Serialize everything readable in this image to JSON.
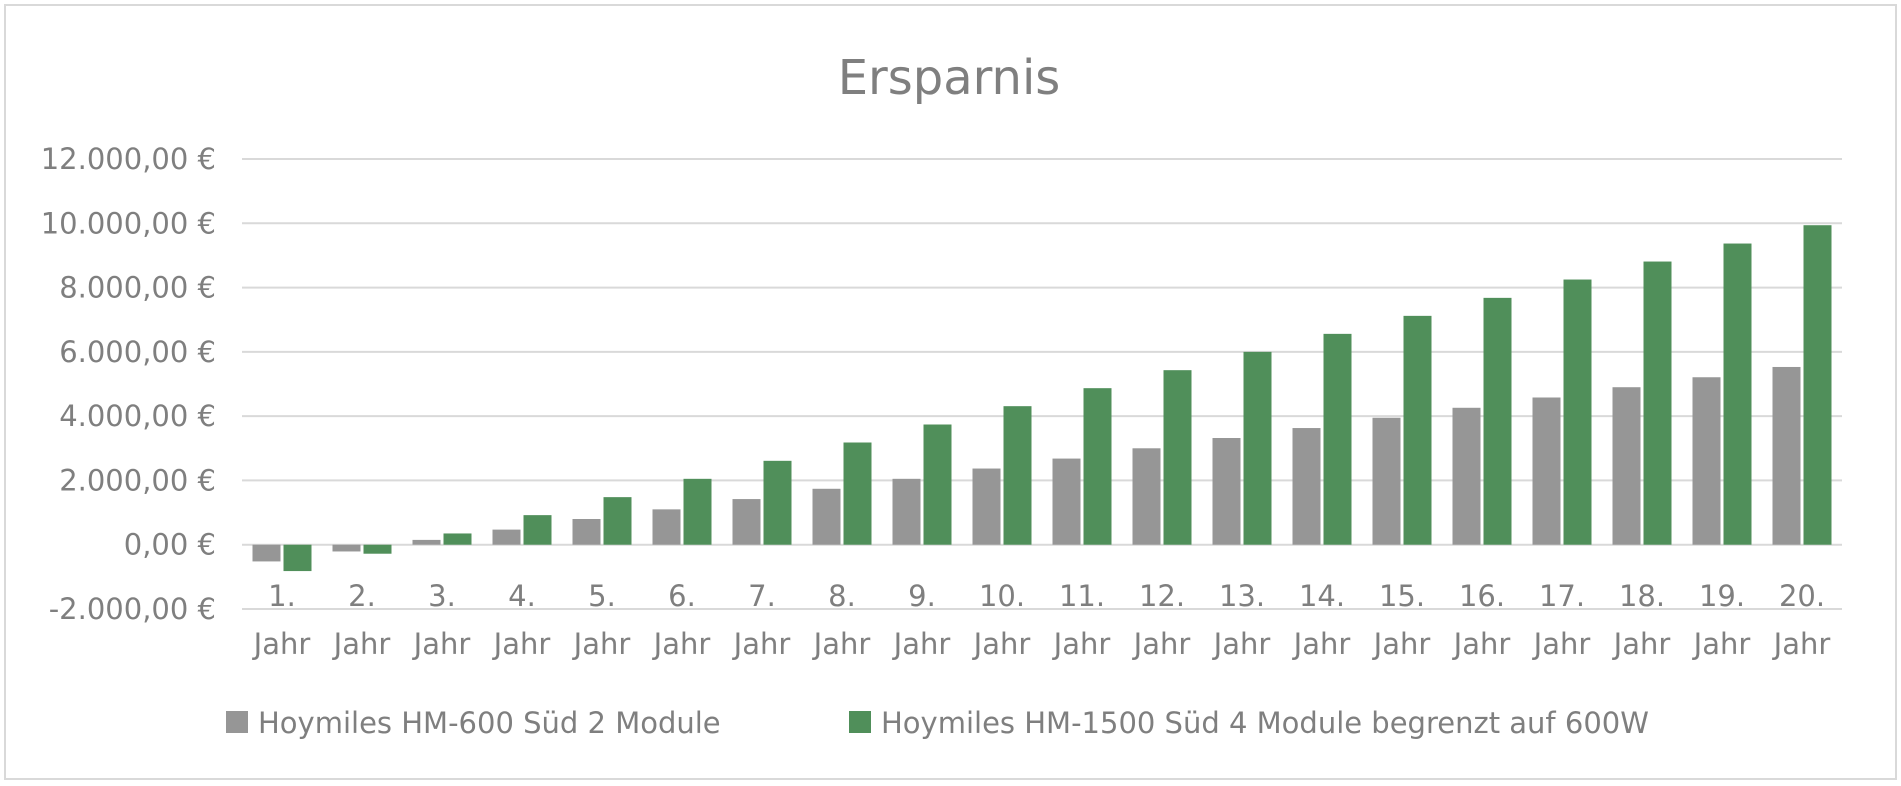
{
  "chart_data": {
    "type": "bar",
    "title": "Ersparnis",
    "xlabel": "",
    "ylabel": "",
    "ylim": [
      -2000,
      12000
    ],
    "y_ticks": [
      -2000,
      0,
      2000,
      4000,
      6000,
      8000,
      10000,
      12000
    ],
    "y_tick_labels": [
      "-2.000,00 €",
      "0,00 €",
      "2.000,00 €",
      "4.000,00 €",
      "6.000,00 €",
      "8.000,00 €",
      "10.000,00 €",
      "12.000,00 €"
    ],
    "grid": true,
    "legend_position": "bottom",
    "categories": [
      [
        "1.",
        "Jahr"
      ],
      [
        "2.",
        "Jahr"
      ],
      [
        "3.",
        "Jahr"
      ],
      [
        "4.",
        "Jahr"
      ],
      [
        "5.",
        "Jahr"
      ],
      [
        "6.",
        "Jahr"
      ],
      [
        "7.",
        "Jahr"
      ],
      [
        "8.",
        "Jahr"
      ],
      [
        "9.",
        "Jahr"
      ],
      [
        "10.",
        "Jahr"
      ],
      [
        "11.",
        "Jahr"
      ],
      [
        "12.",
        "Jahr"
      ],
      [
        "13.",
        "Jahr"
      ],
      [
        "14.",
        "Jahr"
      ],
      [
        "15.",
        "Jahr"
      ],
      [
        "16.",
        "Jahr"
      ],
      [
        "17.",
        "Jahr"
      ],
      [
        "18.",
        "Jahr"
      ],
      [
        "19.",
        "Jahr"
      ],
      [
        "20.",
        "Jahr"
      ]
    ],
    "series": [
      {
        "name": "Hoymiles HM-600 Süd 2 Module",
        "color": "#969696",
        "values": [
          -520,
          -210,
          150,
          470,
          800,
          1100,
          1420,
          1740,
          2050,
          2370,
          2680,
          3000,
          3320,
          3630,
          3950,
          4260,
          4580,
          4900,
          5210,
          5530
        ]
      },
      {
        "name": "Hoymiles HM-1500 Süd 4 Module begrenzt auf 600W",
        "color": "#508f5a",
        "values": [
          -820,
          -280,
          350,
          920,
          1480,
          2050,
          2610,
          3180,
          3740,
          4310,
          4870,
          5430,
          6000,
          6560,
          7120,
          7680,
          8250,
          8810,
          9370,
          9940
        ]
      }
    ]
  }
}
